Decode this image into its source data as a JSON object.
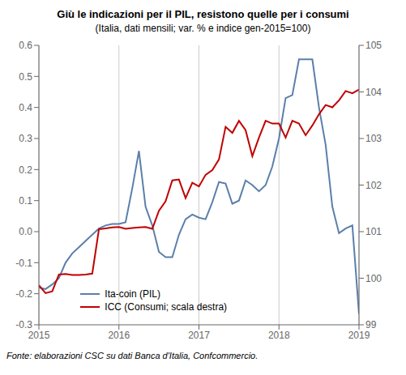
{
  "chart_data": {
    "type": "line",
    "title": "Giù le indicazioni  per il PIL, resistono quelle per i consumi",
    "subtitle": "(Italia, dati mensili; var. % e indice gen-2015=100)",
    "footnote": "Fonte: elaborazioni  CSC  su dati Banca d'Italia, Confcommercio.",
    "x": [
      2015.0,
      2015.083,
      2015.167,
      2015.25,
      2015.333,
      2015.417,
      2015.5,
      2015.583,
      2015.667,
      2015.75,
      2015.833,
      2015.917,
      2016.0,
      2016.083,
      2016.167,
      2016.25,
      2016.333,
      2016.417,
      2016.5,
      2016.583,
      2016.667,
      2016.75,
      2016.833,
      2016.917,
      2017.0,
      2017.083,
      2017.167,
      2017.25,
      2017.333,
      2017.417,
      2017.5,
      2017.583,
      2017.667,
      2017.75,
      2017.833,
      2017.917,
      2018.0,
      2018.083,
      2018.167,
      2018.25,
      2018.333,
      2018.417,
      2018.5,
      2018.583,
      2018.667,
      2018.75,
      2018.833,
      2018.917,
      2019.0
    ],
    "series": [
      {
        "name": "Ita-coin (PIL)",
        "color": "#5b7faa",
        "values": [
          -0.18,
          -0.185,
          -0.17,
          -0.15,
          -0.1,
          -0.07,
          -0.05,
          -0.03,
          -0.01,
          0.01,
          0.02,
          0.025,
          0.025,
          0.03,
          0.14,
          0.26,
          0.08,
          0.02,
          -0.065,
          -0.082,
          -0.082,
          -0.01,
          0.04,
          0.055,
          0.045,
          0.04,
          0.095,
          0.16,
          0.155,
          0.09,
          0.1,
          0.165,
          0.15,
          0.13,
          0.15,
          0.21,
          0.3,
          0.43,
          0.44,
          0.555,
          0.555,
          0.555,
          0.4,
          0.28,
          0.08,
          -0.005,
          0.01,
          0.02,
          -0.265
        ]
      },
      {
        "name": "ICC (Consumi;  scala destra)",
        "color": "#c00000",
        "axis": "y2",
        "values": [
          99.85,
          99.68,
          99.72,
          100.08,
          100.09,
          100.07,
          100.07,
          100.08,
          100.1,
          101.05,
          101.07,
          101.09,
          101.1,
          101.06,
          101.08,
          101.09,
          101.1,
          101.06,
          101.45,
          101.65,
          102.1,
          102.12,
          101.72,
          102.05,
          101.97,
          102.22,
          102.32,
          102.55,
          103.25,
          103.12,
          103.38,
          103.18,
          102.62,
          103.02,
          103.38,
          103.32,
          103.32,
          103.02,
          103.38,
          103.32,
          103.07,
          103.28,
          103.52,
          103.72,
          103.67,
          103.82,
          104.02,
          103.97,
          104.05
        ]
      }
    ],
    "xlim": [
      2015,
      2019
    ],
    "xticks": [
      2015,
      2016,
      2017,
      2018,
      2019
    ],
    "ylim": [
      -0.3,
      0.6
    ],
    "yticks": [
      -0.3,
      -0.2,
      -0.1,
      {
        "value": 0,
        "label": "0.0"
      },
      0.1,
      0.2,
      0.3,
      0.4,
      0.5,
      0.6
    ],
    "y2lim": [
      99,
      105
    ],
    "y2ticks": [
      99,
      100,
      101,
      102,
      103,
      104,
      105
    ],
    "grid": true,
    "legend": "lower left"
  }
}
